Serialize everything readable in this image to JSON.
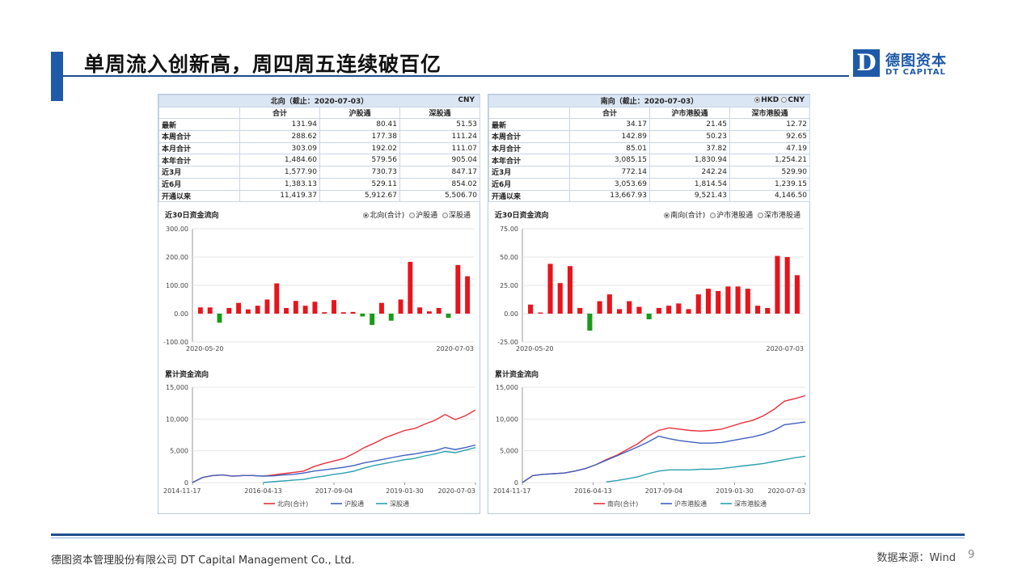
{
  "title": "单周流入创新高，周四周五连续破百亿",
  "logo": {
    "mark": "D",
    "cn": "德图资本",
    "en": "DT CAPITAL"
  },
  "footer": {
    "company": "德图资本管理股份有限公司  DT Capital Management Co., Ltd.",
    "source": "数据来源：Wind",
    "page": "9"
  },
  "colors": {
    "accent": "#1f5aa8",
    "positive": "#e8141c",
    "negative": "#1a9a1a",
    "line_total": "#e8303a",
    "line_sh": "#4060c0",
    "line_sz": "#2aa0b0"
  },
  "north": {
    "caption": "北向（截止：2020-07-03）",
    "currency": "CNY",
    "columns": [
      "",
      "合计",
      "沪股通",
      "深股通"
    ],
    "rows": [
      [
        "最新",
        "131.94",
        "80.41",
        "51.53"
      ],
      [
        "本周合计",
        "288.62",
        "177.38",
        "111.24"
      ],
      [
        "本月合计",
        "303.09",
        "192.02",
        "111.07"
      ],
      [
        "本年合计",
        "1,484.60",
        "579.56",
        "905.04"
      ],
      [
        "近3月",
        "1,577.90",
        "730.73",
        "847.17"
      ],
      [
        "近6月",
        "1,383.13",
        "529.11",
        "854.02"
      ],
      [
        "开通以来",
        "11,419.37",
        "5,912.67",
        "5,506.70"
      ]
    ],
    "bar_title": "近30日资金流向",
    "bar_options": [
      "北向(合计)",
      "沪股通",
      "深股通"
    ],
    "line_title": "累计资金流向",
    "line_legend": [
      "北向(合计)",
      "沪股通",
      "深股通"
    ]
  },
  "south": {
    "caption": "南向（截止：2020-07-03）",
    "currency_options": [
      "HKD",
      "CNY"
    ],
    "columns": [
      "",
      "合计",
      "沪市港股通",
      "深市港股通"
    ],
    "rows": [
      [
        "最新",
        "34.17",
        "21.45",
        "12.72"
      ],
      [
        "本周合计",
        "142.89",
        "50.23",
        "92.65"
      ],
      [
        "本月合计",
        "85.01",
        "37.82",
        "47.19"
      ],
      [
        "本年合计",
        "3,085.15",
        "1,830.94",
        "1,254.21"
      ],
      [
        "近3月",
        "772.14",
        "242.24",
        "529.90"
      ],
      [
        "近6月",
        "3,053.69",
        "1,814.54",
        "1,239.15"
      ],
      [
        "开通以来",
        "13,667.93",
        "9,521.43",
        "4,146.50"
      ]
    ],
    "bar_title": "近30日资金流向",
    "bar_options": [
      "南向(合计)",
      "沪市港股通",
      "深市港股通"
    ],
    "line_title": "累计资金流向",
    "line_legend": [
      "南向(合计)",
      "沪市港股通",
      "深市港股通"
    ]
  },
  "chart_data": [
    {
      "type": "bar",
      "title": "近30日资金流向",
      "series_name": "北向(合计)",
      "ylim": [
        -100,
        300
      ],
      "yticks": [
        "300.00",
        "200.00",
        "100.00",
        "0.00",
        "-100.00"
      ],
      "xticks": [
        "2020-05-20",
        "2020-07-03"
      ],
      "values": [
        22,
        22,
        -32,
        20,
        38,
        15,
        28,
        50,
        107,
        20,
        45,
        28,
        42,
        5,
        48,
        5,
        6,
        -10,
        -40,
        38,
        -25,
        50,
        183,
        22,
        8,
        20,
        -15,
        172,
        132
      ]
    },
    {
      "type": "bar",
      "title": "近30日资金流向",
      "series_name": "南向(合计)",
      "ylim": [
        -25,
        75
      ],
      "yticks": [
        "75.00",
        "50.00",
        "25.00",
        "0.00",
        "-25.00"
      ],
      "xticks": [
        "2020-05-20",
        "2020-07-03"
      ],
      "values": [
        8,
        1,
        44,
        27,
        42,
        5,
        -15,
        11,
        17,
        4,
        11,
        6,
        -5,
        5,
        7,
        9,
        4,
        17,
        22,
        20,
        24,
        24,
        22,
        7,
        5,
        51,
        50,
        34
      ]
    },
    {
      "type": "line",
      "title": "累计资金流向",
      "ylim": [
        0,
        15000
      ],
      "yticks": [
        "15,000",
        "10,000",
        "5,000",
        "0"
      ],
      "xticks": [
        "2014-11-17",
        "2016-04-13",
        "2017-09-04",
        "2019-01-30",
        "2020-07-03"
      ],
      "series": [
        {
          "name": "北向(合计)",
          "values": [
            0,
            800,
            1100,
            1200,
            1000,
            1100,
            1100,
            1000,
            1200,
            1400,
            1600,
            1800,
            2500,
            3000,
            3400,
            3800,
            4600,
            5500,
            6200,
            7000,
            7600,
            8200,
            8500,
            9200,
            9800,
            10700,
            9900,
            10500,
            11419
          ]
        },
        {
          "name": "沪股通",
          "values": [
            0,
            800,
            1100,
            1200,
            1000,
            1100,
            1100,
            1000,
            1050,
            1200,
            1300,
            1500,
            1800,
            2000,
            2200,
            2400,
            2700,
            3100,
            3400,
            3700,
            4000,
            4300,
            4500,
            4800,
            5000,
            5500,
            5200,
            5500,
            5913
          ]
        },
        {
          "name": "深股通",
          "values": [
            null,
            null,
            null,
            null,
            null,
            null,
            null,
            0,
            150,
            250,
            400,
            500,
            800,
            1000,
            1300,
            1500,
            1800,
            2300,
            2700,
            3000,
            3300,
            3600,
            3800,
            4200,
            4500,
            4900,
            4700,
            5100,
            5507
          ]
        }
      ]
    },
    {
      "type": "line",
      "title": "累计资金流向",
      "ylim": [
        0,
        15000
      ],
      "yticks": [
        "15,000",
        "10,000",
        "5,000",
        "0"
      ],
      "xticks": [
        "2014-11-17",
        "2016-04-13",
        "2017-09-04",
        "2019-01-30",
        "2020-07-03"
      ],
      "series": [
        {
          "name": "南向(合计)",
          "values": [
            0,
            1100,
            1300,
            1400,
            1500,
            1800,
            2200,
            2800,
            3600,
            4300,
            5200,
            6100,
            7300,
            8200,
            8600,
            8400,
            8200,
            8100,
            8200,
            8400,
            8900,
            9400,
            9800,
            10500,
            11500,
            12800,
            13200,
            13668
          ]
        },
        {
          "name": "沪市港股通",
          "values": [
            0,
            1100,
            1300,
            1400,
            1500,
            1800,
            2200,
            2800,
            3500,
            4200,
            4900,
            5600,
            6400,
            7300,
            6900,
            6600,
            6400,
            6200,
            6200,
            6300,
            6600,
            6900,
            7200,
            7600,
            8200,
            9100,
            9300,
            9521
          ]
        },
        {
          "name": "深市港股通",
          "values": [
            null,
            null,
            null,
            null,
            null,
            null,
            null,
            null,
            100,
            300,
            600,
            900,
            1400,
            1800,
            2000,
            2000,
            2000,
            2100,
            2100,
            2200,
            2400,
            2600,
            2800,
            3000,
            3300,
            3600,
            3900,
            4147
          ]
        }
      ]
    }
  ]
}
